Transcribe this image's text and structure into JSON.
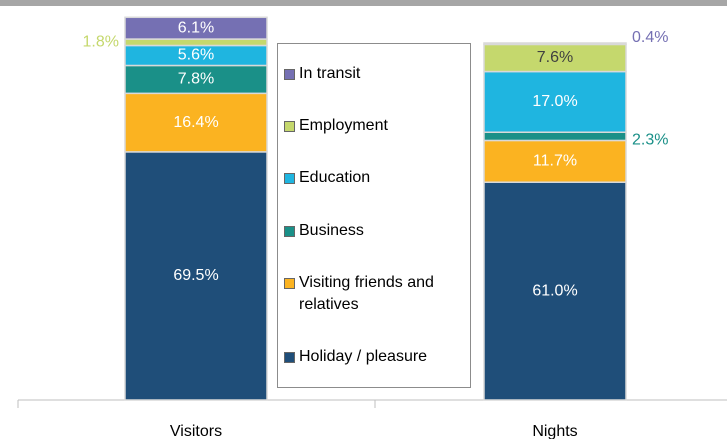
{
  "chart_data": {
    "type": "stacked_bar",
    "categories": [
      "Visitors",
      "Nights"
    ],
    "series": [
      {
        "name": "Holiday / pleasure",
        "color": "#1f4e79",
        "label_color": "#ffffff",
        "values": [
          69.5,
          61.0
        ],
        "value_labels": [
          "69.5%",
          "61.0%"
        ]
      },
      {
        "name": "Visiting friends and relatives",
        "color": "#fbb321",
        "label_color": "#ffffff",
        "values": [
          16.4,
          11.7
        ],
        "value_labels": [
          "16.4%",
          "11.7%"
        ]
      },
      {
        "name": "Business",
        "color": "#1a9088",
        "label_color": "#ffffff",
        "values": [
          7.8,
          2.3
        ],
        "value_labels": [
          "7.8%",
          "2.3%"
        ]
      },
      {
        "name": "Education",
        "color": "#1fb5e0",
        "label_color": "#ffffff",
        "values": [
          5.6,
          17.0
        ],
        "value_labels": [
          "5.6%",
          "17.0%"
        ]
      },
      {
        "name": "Employment",
        "color": "#c5d86d",
        "label_color": "#404040",
        "values": [
          1.8,
          7.6
        ],
        "value_labels": [
          "1.8%",
          "7.6%"
        ]
      },
      {
        "name": "In transit",
        "color": "#7570b3",
        "label_color": "#ffffff",
        "values": [
          6.1,
          0.4
        ],
        "value_labels": [
          "6.1%",
          "0.4%"
        ]
      }
    ],
    "ylim": [
      0,
      107
    ]
  }
}
